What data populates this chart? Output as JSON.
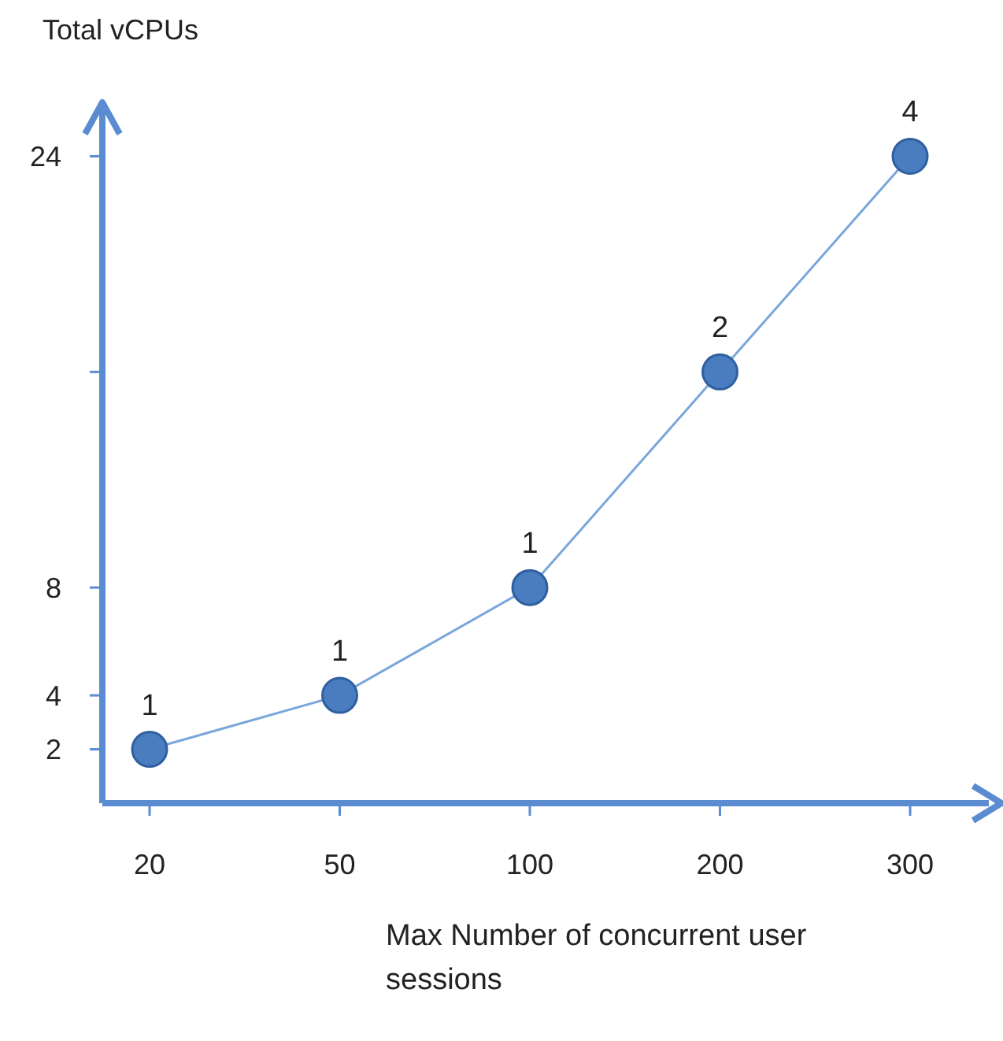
{
  "chart_data": {
    "type": "scatter",
    "xlabel": "Max Number of concurrent user sessions",
    "ylabel": "Total vCPUs",
    "categories": [
      "20",
      "50",
      "100",
      "200",
      "300"
    ],
    "ylim": [
      0,
      26
    ],
    "yticks": [
      2,
      4,
      8,
      {
        "value": 16,
        "label": null
      },
      24
    ],
    "grid": false,
    "annotations": [
      {
        "text": "1",
        "x": "20",
        "y": 2
      },
      {
        "text": "1",
        "x": "50",
        "y": 4
      },
      {
        "text": "1",
        "x": "100",
        "y": 8
      },
      {
        "text": "2",
        "x": "200",
        "y": 16
      },
      {
        "text": "4",
        "x": "300",
        "y": 24
      }
    ],
    "series": [
      {
        "type": "line",
        "color": "#7aa6dc",
        "values": [
          2,
          4,
          8,
          16,
          24
        ],
        "marker": "none"
      },
      {
        "color": "#4a7cc0",
        "values": [
          2,
          4,
          8,
          16,
          24
        ],
        "marker": "circle"
      }
    ]
  }
}
